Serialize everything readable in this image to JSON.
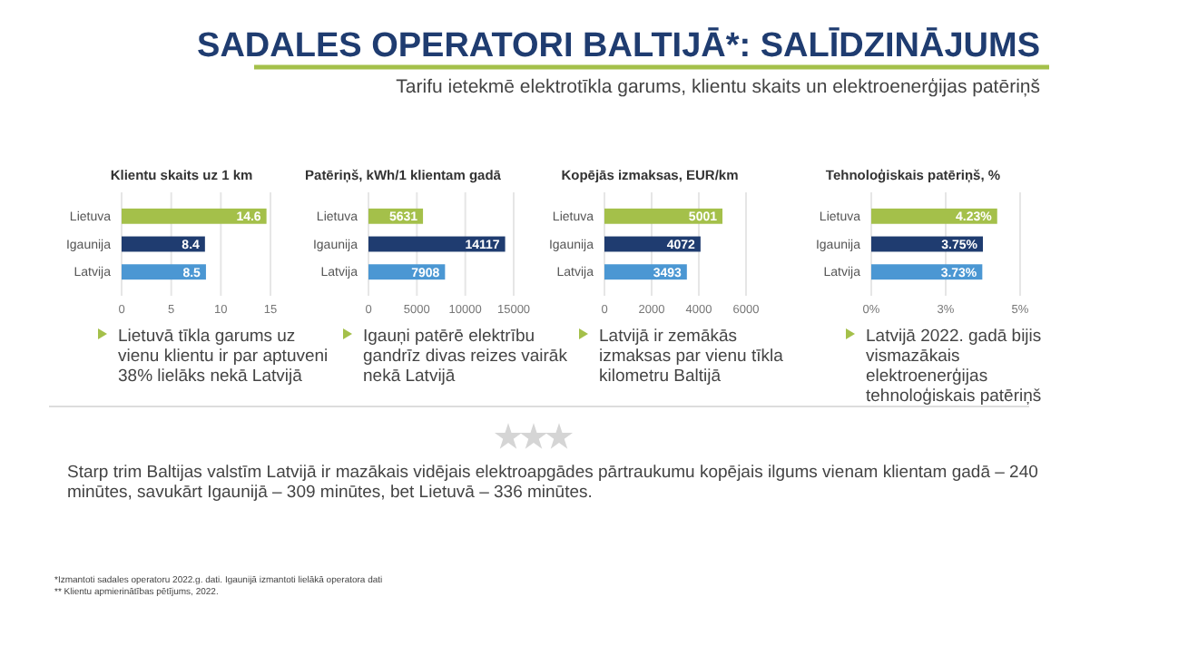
{
  "chart_data": [
    {
      "type": "other",
      "title": "SADALES OPERATORI BALTIJĀ*: SALĪDZINĀJUMS",
      "subtitle": "Tarifu ietekmē elektrotīkla garums, klientu skaits un elektroenerģijas patēriņš",
      "annotations": [
        "Starp trim Baltijas valstīm Latvijā ir mazākais vidējais elektroapgādes pārtraukumu kopējais ilgums vienam klientam gadā – 240 minūtes, savukārt Igaunijā – 309 minūtes, bet Lietuvā – 336 minūtes.",
        "*Izmantoti sadales operatoru 2022.g. dati. Igaunijā izmantoti lielākā operatora dati",
        "** Klientu apmierinātības pētījums, 2022."
      ]
    },
    {
      "type": "bar",
      "orientation": "horizontal",
      "title": "Klientu skaits uz 1 km",
      "categories": [
        "Lietuva",
        "Igaunija",
        "Latvija"
      ],
      "values": [
        14.6,
        8.4,
        8.5
      ],
      "colors": [
        "#a4c04a",
        "#1f3c70",
        "#4b97d3"
      ],
      "xlim": [
        0,
        15
      ],
      "xticks": [
        0,
        5,
        10,
        15
      ],
      "grid": "x",
      "data_labels": true,
      "annotations": [
        "Lietuvā tīkla garums uz vienu klientu ir par aptuveni 38% lielāks nekā Latvijā"
      ]
    },
    {
      "type": "bar",
      "orientation": "horizontal",
      "title": "Patēriņš, kWh/1 klientam gadā",
      "categories": [
        "Lietuva",
        "Igaunija",
        "Latvija"
      ],
      "values": [
        5631,
        14117,
        7908
      ],
      "colors": [
        "#a4c04a",
        "#1f3c70",
        "#4b97d3"
      ],
      "xlim": [
        0,
        15000
      ],
      "xticks": [
        0,
        5000,
        10000,
        15000
      ],
      "grid": "x",
      "data_labels": true,
      "annotations": [
        "Igauņi patērē elektrību gandrīz divas reizes vairāk nekā Latvijā"
      ]
    },
    {
      "type": "bar",
      "orientation": "horizontal",
      "title": "Kopējās izmaksas, EUR/km",
      "categories": [
        "Lietuva",
        "Igaunija",
        "Latvija"
      ],
      "values": [
        5001,
        4072,
        3493
      ],
      "colors": [
        "#a4c04a",
        "#1f3c70",
        "#4b97d3"
      ],
      "xlim": [
        0,
        6000
      ],
      "xticks": [
        0,
        2000,
        4000,
        6000
      ],
      "grid": "x",
      "data_labels": true,
      "annotations": [
        "Latvijā ir zemākās izmaksas par vienu tīkla kilometru Baltijā"
      ]
    },
    {
      "type": "bar",
      "orientation": "horizontal",
      "title": "Tehnoloģiskais patēriņš, %",
      "categories": [
        "Lietuva",
        "Igaunija",
        "Latvija"
      ],
      "values": [
        4.23,
        3.75,
        3.73
      ],
      "value_labels": [
        "4.23%",
        "3.75%",
        "3.73%"
      ],
      "colors": [
        "#a4c04a",
        "#1f3c70",
        "#4b97d3"
      ],
      "xlim": [
        0,
        5
      ],
      "xticks": [
        {
          "value": 0,
          "label": "0%"
        },
        {
          "value": 2.5,
          "label": "3%"
        },
        {
          "value": 5,
          "label": "5%"
        }
      ],
      "grid": "x",
      "annotations": [
        "Latvijā 2022. gadā bijis vismazākais elektroenerģijas tehnoloģiskais patēriņš"
      ]
    }
  ]
}
